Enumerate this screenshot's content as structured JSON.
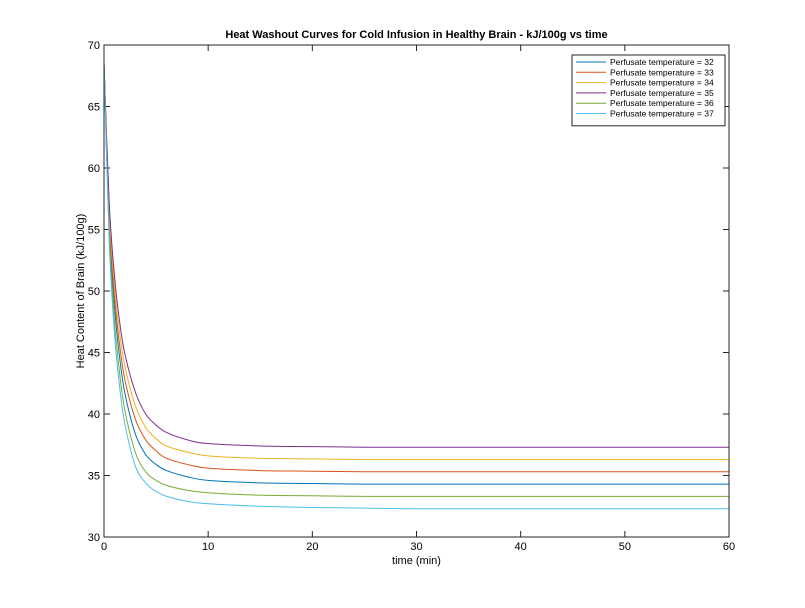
{
  "chart_data": {
    "type": "line",
    "title": "Heat Washout Curves for Cold Infusion in Healthy Brain - kJ/100g vs time",
    "xlabel": "time (min)",
    "ylabel": "Heat Content of Brain (kJ/100g)",
    "xlim": [
      0,
      60
    ],
    "ylim": [
      30,
      70
    ],
    "xticks": [
      0,
      10,
      20,
      30,
      40,
      50,
      60
    ],
    "yticks": [
      30,
      35,
      40,
      45,
      50,
      55,
      60,
      65,
      70
    ],
    "grid": false,
    "legend_position": "top-right",
    "x": [
      0,
      0.5,
      1,
      1.5,
      2,
      3,
      4,
      5,
      6,
      8,
      10,
      15,
      20,
      25,
      30,
      40,
      50,
      60
    ],
    "series": [
      {
        "name": "Perfusate temperature = 32",
        "color": "#0072BD",
        "values": [
          68.5,
          55.4,
          48.8,
          44.6,
          41.7,
          38.4,
          36.7,
          35.9,
          35.4,
          34.9,
          34.6,
          34.4,
          34.35,
          34.3,
          34.3,
          34.3,
          34.3,
          34.3
        ]
      },
      {
        "name": "Perfusate temperature = 33",
        "color": "#D95319",
        "values": [
          68.5,
          56.0,
          49.6,
          45.6,
          42.8,
          39.6,
          37.9,
          37.0,
          36.4,
          35.9,
          35.6,
          35.4,
          35.35,
          35.3,
          35.3,
          35.3,
          35.3,
          35.3
        ]
      },
      {
        "name": "Perfusate temperature = 34",
        "color": "#EDB120",
        "values": [
          68.5,
          56.6,
          50.5,
          46.6,
          43.9,
          40.7,
          38.9,
          38.0,
          37.4,
          36.9,
          36.6,
          36.4,
          36.35,
          36.3,
          36.3,
          36.3,
          36.3,
          36.3
        ]
      },
      {
        "name": "Perfusate temperature = 35",
        "color": "#7E2F8E",
        "values": [
          68.5,
          57.2,
          51.3,
          47.5,
          44.9,
          41.8,
          40.0,
          39.1,
          38.5,
          37.9,
          37.6,
          37.4,
          37.35,
          37.3,
          37.3,
          37.3,
          37.3,
          37.3
        ]
      },
      {
        "name": "Perfusate temperature = 36",
        "color": "#77AC30",
        "values": [
          68.5,
          54.6,
          47.6,
          43.3,
          40.3,
          36.9,
          35.3,
          34.6,
          34.2,
          33.8,
          33.6,
          33.4,
          33.35,
          33.3,
          33.3,
          33.3,
          33.3,
          33.3
        ]
      },
      {
        "name": "Perfusate temperature = 37",
        "color": "#4DBEEE",
        "values": [
          68.5,
          54.0,
          46.6,
          42.2,
          39.2,
          35.8,
          34.4,
          33.7,
          33.3,
          32.9,
          32.7,
          32.5,
          32.4,
          32.35,
          32.3,
          32.3,
          32.3,
          32.3
        ]
      }
    ]
  },
  "colors": {
    "axis": "#262626",
    "background": "#ffffff",
    "legend_border": "#262626"
  }
}
